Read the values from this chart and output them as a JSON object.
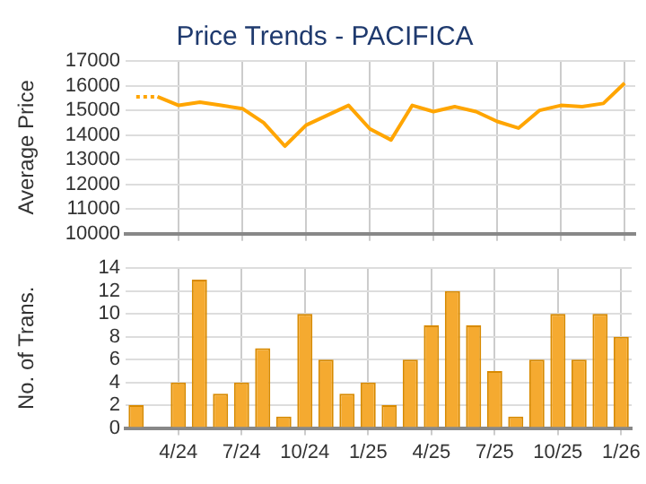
{
  "chart_data": [
    {
      "type": "line",
      "title": "Price Trends - PACIFICA",
      "ylabel": "Average Price",
      "categories": [
        null,
        null,
        null,
        null,
        null,
        null,
        null,
        null,
        null,
        null,
        null,
        null,
        null,
        null,
        null,
        null,
        null,
        null,
        null,
        null,
        null,
        null,
        null,
        null
      ],
      "series": [
        {
          "color": "#ffa500",
          "line_style": "dotted",
          "values": [
            15550,
            15550,
            null,
            null,
            null,
            null,
            null,
            null,
            null,
            null,
            null,
            null,
            null,
            null,
            null,
            null,
            null,
            null,
            null,
            null,
            null,
            null,
            null,
            null
          ]
        },
        {
          "color": "#ffa500",
          "line_style": "solid",
          "values": [
            null,
            15550,
            15200,
            15330,
            15200,
            15070,
            14500,
            13550,
            14400,
            14800,
            15200,
            14250,
            13800,
            15200,
            14950,
            15150,
            14950,
            14550,
            14280,
            15000,
            15200,
            15150,
            15280,
            16100
          ]
        }
      ],
      "marker": "none",
      "ylim": [
        10000,
        17000
      ],
      "yticks": [
        10000,
        11000,
        12000,
        13000,
        14000,
        15000,
        16000,
        17000
      ],
      "grid": true,
      "tick_labels": "y"
    },
    {
      "type": "bar",
      "ylabel": "No. of Trans.",
      "categories": [
        null,
        null,
        "4/24",
        null,
        null,
        "7/24",
        null,
        null,
        "10/24",
        null,
        null,
        "1/25",
        null,
        null,
        "4/25",
        null,
        null,
        "7/25",
        null,
        null,
        "10/25",
        null,
        null,
        "1/26"
      ],
      "values": [
        2,
        0,
        4,
        13,
        3,
        4,
        7,
        1,
        10,
        6,
        3,
        4,
        2,
        6,
        9,
        12,
        9,
        5,
        1,
        6,
        10,
        6,
        10,
        8
      ],
      "color": "#f5aa30",
      "ylim": [
        0,
        14
      ],
      "yticks": [
        0,
        2,
        4,
        6,
        8,
        10,
        12,
        14
      ],
      "grid": true
    }
  ]
}
